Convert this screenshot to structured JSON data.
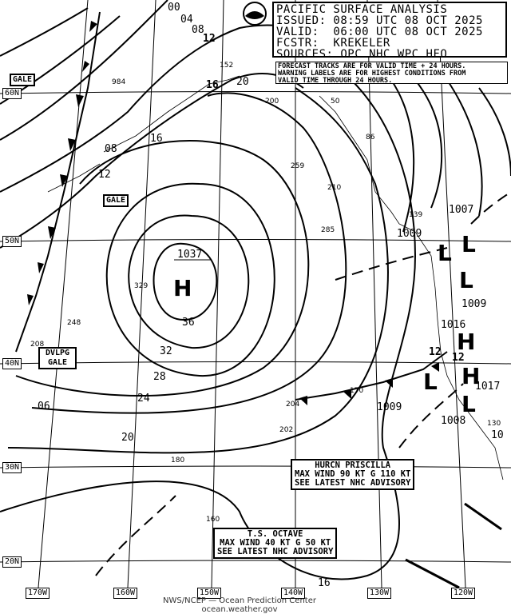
{
  "header": {
    "title": "PACIFIC SURFACE ANALYSIS",
    "issued": "ISSUED: 08:59 UTC 08 OCT 2025",
    "valid": "VALID:  06:00 UTC 08 OCT 2025",
    "forecaster": "FCSTR:  KREKELER",
    "sources": "SOURCES: OPC NHC WPC HFO"
  },
  "note": {
    "line1": "FORECAST TRACKS ARE FOR VALID TIME + 24 HOURS.",
    "line2": "WARNING LABELS ARE FOR HIGHEST CONDITIONS FROM",
    "line3": "VALID TIME THROUGH 24 HOURS."
  },
  "logo": "NOAA",
  "grid": {
    "longitudes": [
      "170W",
      "160W",
      "150W",
      "140W",
      "130W",
      "120W"
    ],
    "latitudes": [
      "60N",
      "50N",
      "40N",
      "30N",
      "20N"
    ]
  },
  "pressure_centers": [
    {
      "type": "H",
      "value": "1037"
    },
    {
      "type": "L",
      "value": "1009"
    },
    {
      "type": "L",
      "value": "1007"
    },
    {
      "type": "L",
      "value": "1009"
    },
    {
      "type": "H",
      "value": "1016"
    },
    {
      "type": "H",
      "value": "1017"
    },
    {
      "type": "L",
      "value": "1009"
    },
    {
      "type": "L",
      "value": "1008"
    },
    {
      "type": "H",
      "value": "10"
    }
  ],
  "isobar_labels": [
    "00",
    "04",
    "08",
    "12",
    "16",
    "20",
    "984",
    "08",
    "12",
    "16",
    "36",
    "32",
    "28",
    "24",
    "20",
    "16",
    "06",
    "12",
    "12"
  ],
  "station_values": [
    "152",
    "200",
    "50",
    "86",
    "259",
    "210",
    "285",
    "139",
    "329",
    "248",
    "208",
    "204",
    "202",
    "170",
    "180",
    "160",
    "130"
  ],
  "warnings": [
    "GALE",
    "GALE",
    "DVLPG GALE"
  ],
  "storms": [
    {
      "name": "HURCN PRISCILLA",
      "wind": "MAX WIND 90 KT G 110 KT",
      "advice": "SEE LATEST NHC ADVISORY"
    },
    {
      "name": "T.S. OCTAVE",
      "wind": "MAX WIND 40 KT G 50 KT",
      "advice": "SEE LATEST NHC ADVISORY"
    }
  ],
  "footer": {
    "line1": "NWS/NCEP — Ocean Prediction Center",
    "line2": "ocean.weather.gov"
  }
}
